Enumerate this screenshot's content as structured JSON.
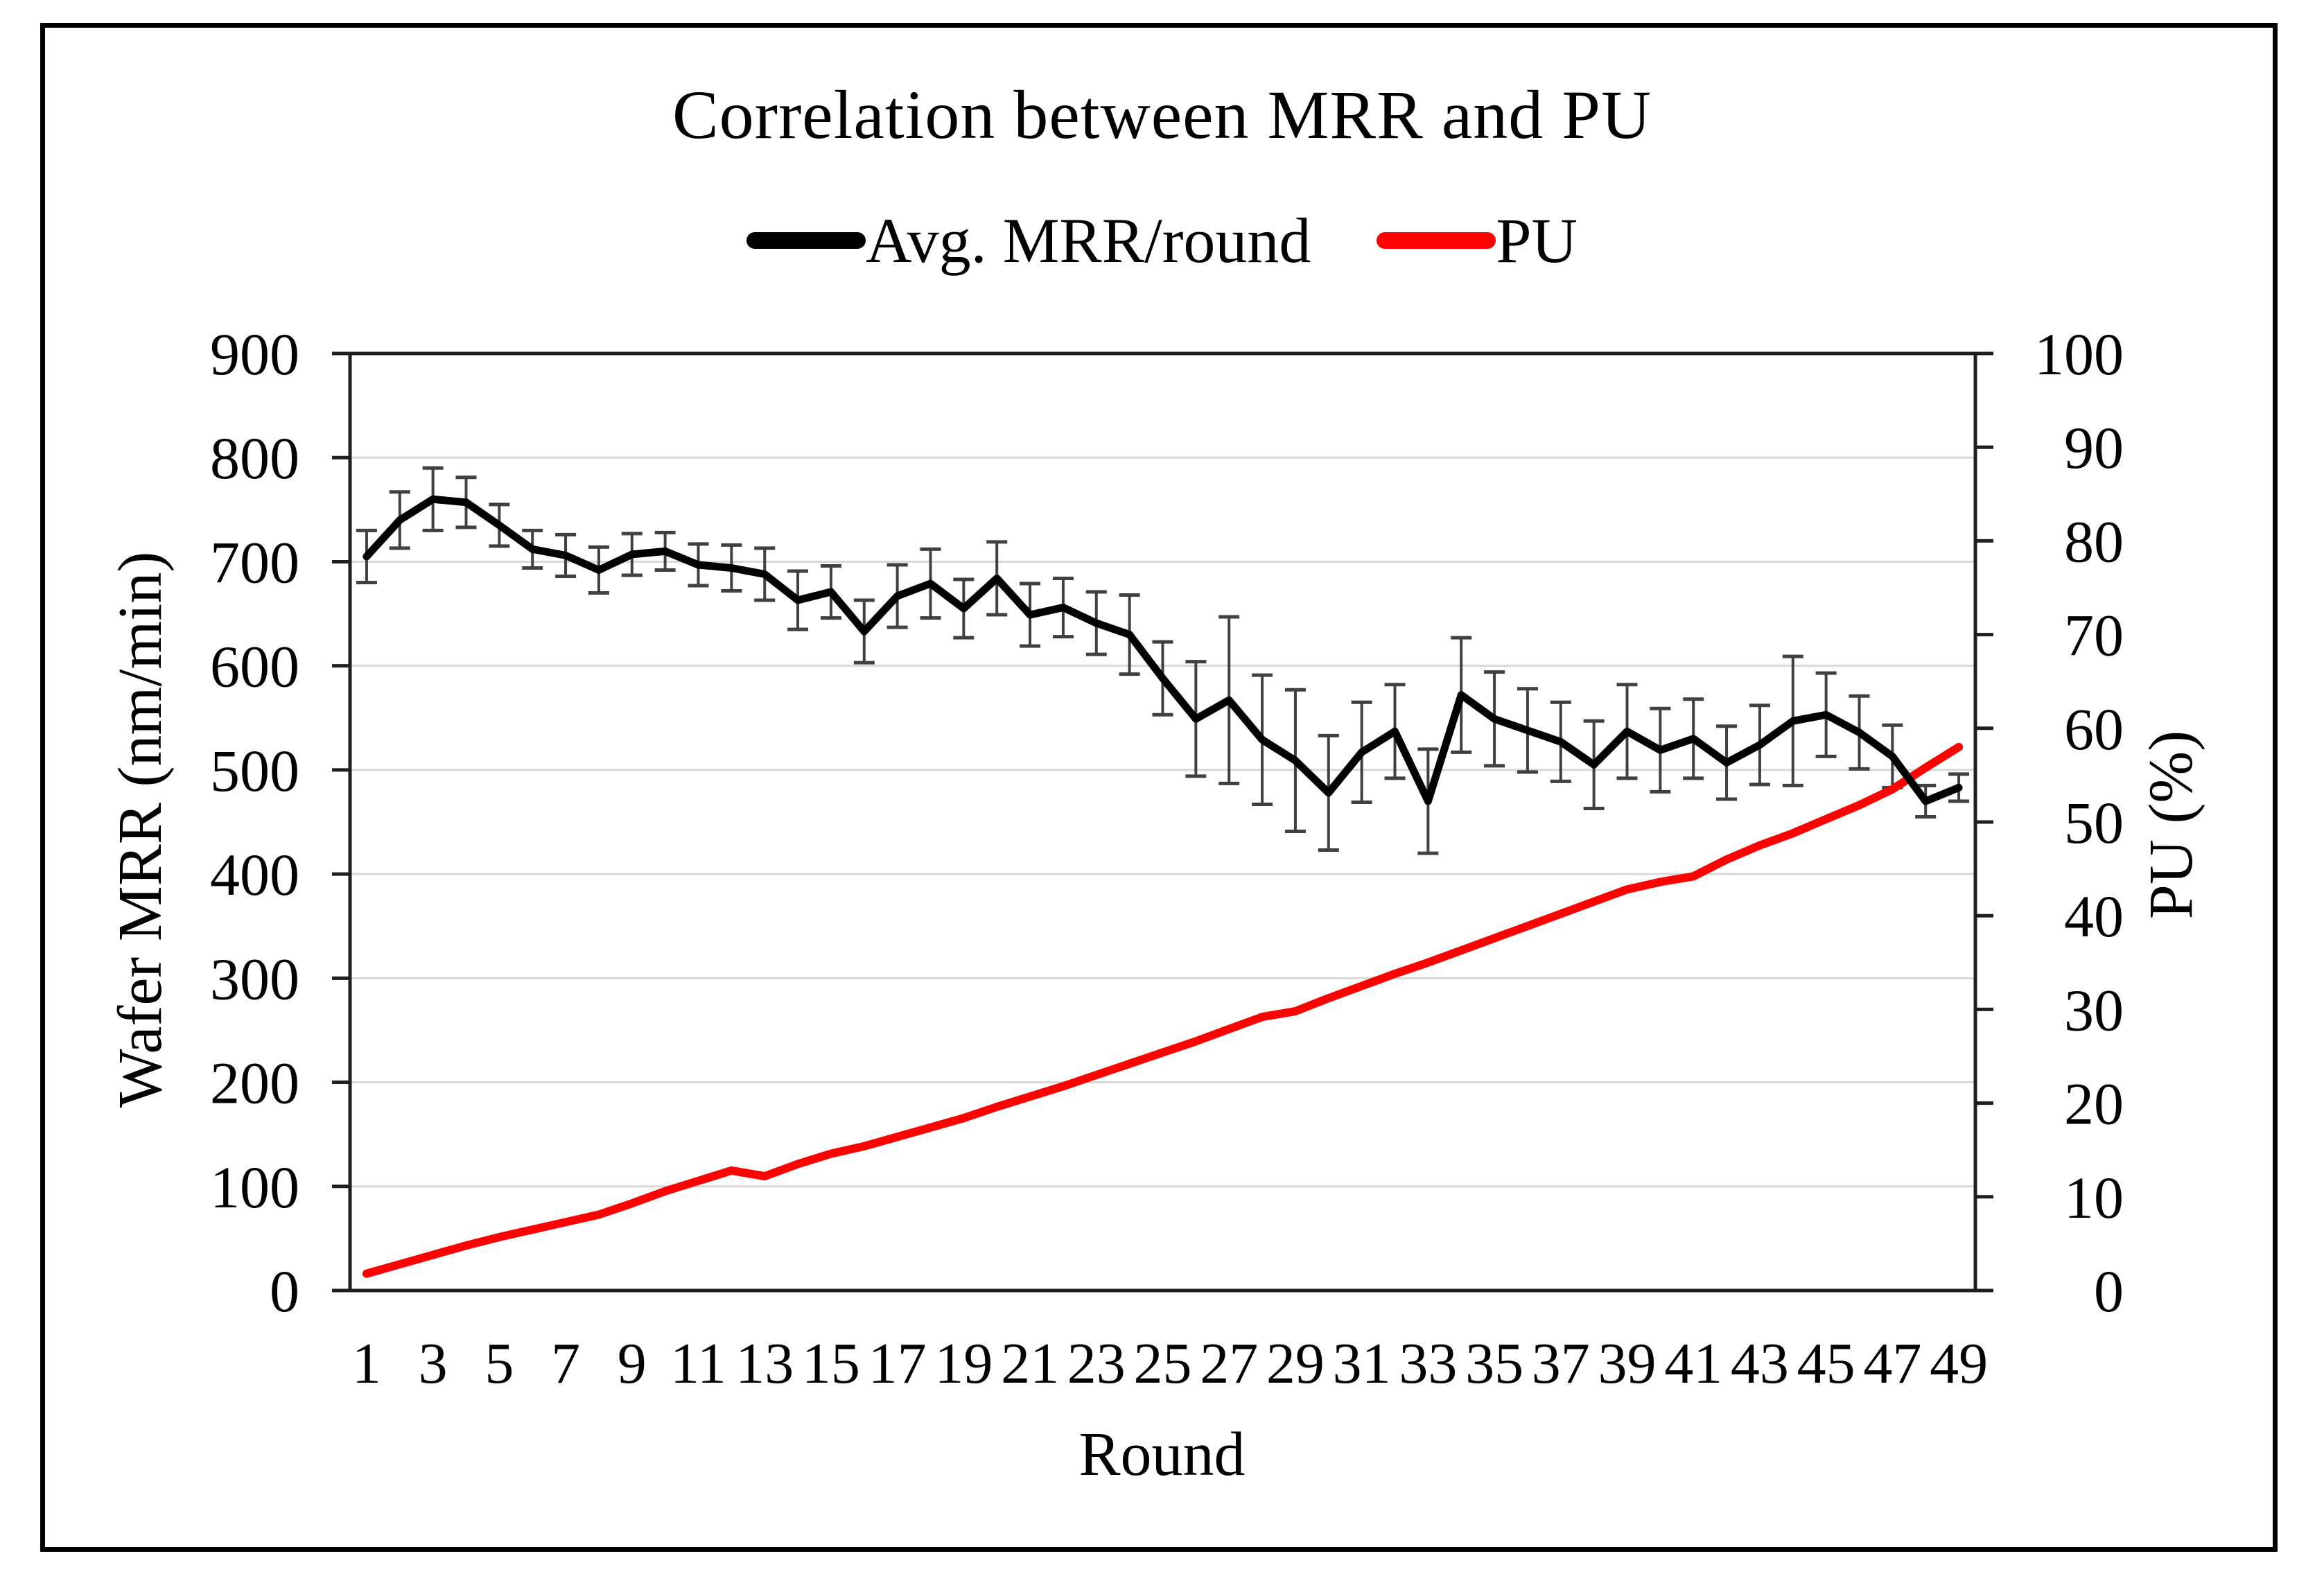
{
  "chart_data": {
    "type": "line",
    "title": "Correlation between MRR and PU",
    "xlabel": "Round",
    "ylabel_left": "Wafer MRR (nm/min)",
    "ylabel_right": "PU (%)",
    "legend_position": "top",
    "grid": true,
    "ylim_left": [
      0,
      900
    ],
    "yticks_left": [
      0,
      100,
      200,
      300,
      400,
      500,
      600,
      700,
      800,
      900
    ],
    "ylim_right": [
      0,
      100
    ],
    "yticks_right": [
      0,
      10,
      20,
      30,
      40,
      50,
      60,
      70,
      80,
      90,
      100
    ],
    "x": [
      1,
      2,
      3,
      4,
      5,
      6,
      7,
      8,
      9,
      10,
      11,
      12,
      13,
      14,
      15,
      16,
      17,
      18,
      19,
      20,
      21,
      22,
      23,
      24,
      25,
      26,
      27,
      28,
      29,
      30,
      31,
      32,
      33,
      34,
      35,
      36,
      37,
      38,
      39,
      40,
      41,
      42,
      43,
      44,
      45,
      46,
      47,
      48,
      49
    ],
    "x_tick_labels": [
      1,
      3,
      5,
      7,
      9,
      11,
      13,
      15,
      17,
      19,
      21,
      23,
      25,
      27,
      29,
      31,
      33,
      35,
      37,
      39,
      41,
      43,
      45,
      47,
      49
    ],
    "series": [
      {
        "name": "Avg. MRR/round",
        "axis": "left",
        "color": "#000000",
        "values": [
          705,
          740,
          760,
          757,
          735,
          712,
          706,
          692,
          707,
          710,
          697,
          694,
          688,
          663,
          671,
          633,
          667,
          679,
          655,
          684,
          649,
          656,
          641,
          630,
          588,
          549,
          567,
          529,
          509,
          478,
          517,
          537,
          470,
          572,
          549,
          538,
          527,
          505,
          537,
          519,
          530,
          507,
          524,
          547,
          553,
          536,
          513,
          470,
          483
        ],
        "errors": [
          25,
          27,
          30,
          24,
          20,
          18,
          20,
          22,
          20,
          18,
          20,
          22,
          25,
          28,
          25,
          30,
          30,
          33,
          28,
          35,
          30,
          28,
          30,
          38,
          35,
          55,
          80,
          62,
          68,
          55,
          48,
          45,
          50,
          55,
          45,
          40,
          38,
          42,
          45,
          40,
          38,
          35,
          38,
          62,
          40,
          35,
          30,
          15,
          13
        ]
      },
      {
        "name": "PU",
        "axis": "right",
        "color": "#FE0101",
        "values": [
          1.8,
          2.8,
          3.8,
          4.8,
          5.7,
          6.5,
          7.3,
          8.1,
          9.3,
          10.6,
          11.7,
          12.8,
          12.2,
          13.5,
          14.6,
          15.4,
          16.4,
          17.4,
          18.4,
          19.6,
          20.7,
          21.8,
          23.0,
          24.2,
          25.4,
          26.6,
          27.9,
          29.2,
          29.8,
          31.2,
          32.5,
          33.8,
          35.0,
          36.3,
          37.6,
          38.9,
          40.2,
          41.5,
          42.8,
          43.6,
          44.2,
          46.0,
          47.5,
          48.8,
          50.3,
          51.8,
          53.5,
          55.8,
          58.0
        ],
        "errors": null
      }
    ],
    "colors": {
      "gridline": "#D8D8D8",
      "axis": "#1F1F1F",
      "error_bar": "#404040",
      "background": "#FFFFFF",
      "border": "#000000"
    }
  }
}
